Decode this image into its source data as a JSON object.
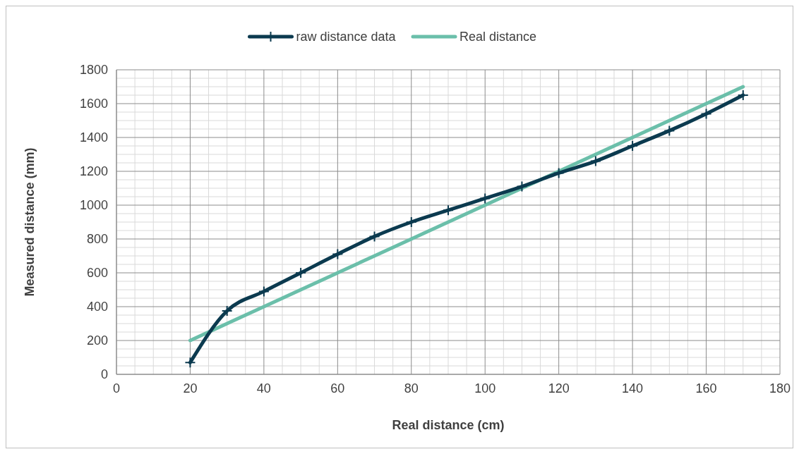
{
  "chart_data": {
    "type": "line",
    "xlabel": "Real distance (cm)",
    "ylabel": "Measured distance (mm)",
    "x": [
      20,
      30,
      40,
      50,
      60,
      70,
      80,
      90,
      100,
      110,
      120,
      130,
      140,
      150,
      160,
      170
    ],
    "series": [
      {
        "name": "raw distance data",
        "color": "#0b3a4f",
        "marker": "cross",
        "values": [
          70,
          375,
          490,
          600,
          710,
          815,
          900,
          970,
          1040,
          1110,
          1190,
          1260,
          1350,
          1440,
          1540,
          1650
        ]
      },
      {
        "name": "Real distance",
        "color": "#6bbfaa",
        "marker": "none",
        "values": [
          200,
          300,
          400,
          500,
          600,
          700,
          800,
          900,
          1000,
          1100,
          1200,
          1300,
          1400,
          1500,
          1600,
          1700
        ]
      }
    ],
    "xlim": [
      0,
      180
    ],
    "xticks": [
      0,
      20,
      40,
      60,
      80,
      100,
      120,
      140,
      160,
      180
    ],
    "ylim": [
      0,
      1800
    ],
    "yticks": [
      0,
      200,
      400,
      600,
      800,
      1000,
      1200,
      1400,
      1600,
      1800
    ],
    "grid": true,
    "legend": "top"
  }
}
